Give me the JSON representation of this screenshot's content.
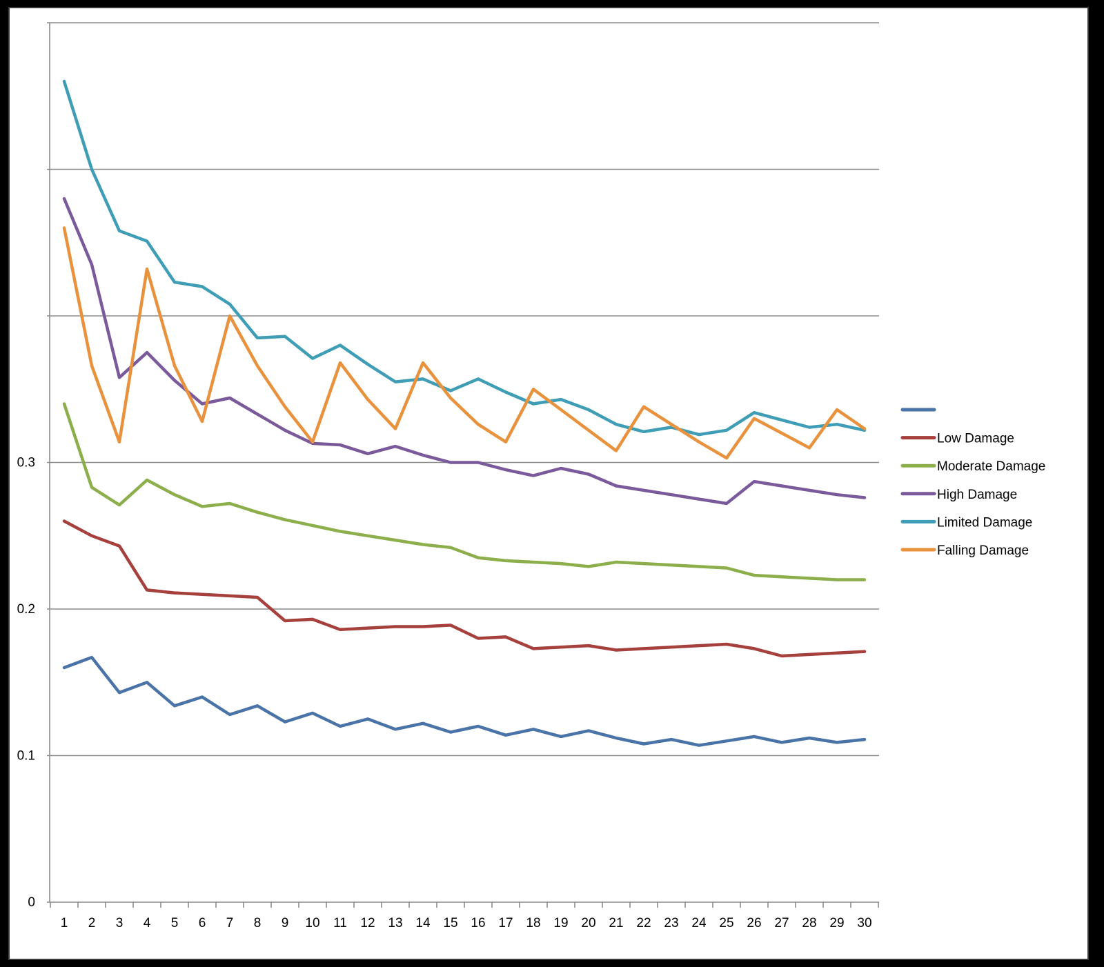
{
  "chart_data": {
    "type": "line",
    "title": "",
    "xlabel": "",
    "ylabel": "",
    "x": [
      1,
      2,
      3,
      4,
      5,
      6,
      7,
      8,
      9,
      10,
      11,
      12,
      13,
      14,
      15,
      16,
      17,
      18,
      19,
      20,
      21,
      22,
      23,
      24,
      25,
      26,
      27,
      28,
      29,
      30
    ],
    "x_tick_labels": [
      "1",
      "2",
      "3",
      "4",
      "5",
      "6",
      "7",
      "8",
      "9",
      "10",
      "11",
      "12",
      "13",
      "14",
      "15",
      "16",
      "17",
      "18",
      "19",
      "20",
      "21",
      "22",
      "23",
      "24",
      "25",
      "26",
      "27",
      "28",
      "29",
      "30"
    ],
    "ylim": [
      0,
      0.6
    ],
    "grid_values": [
      0.1,
      0.2,
      0.3,
      0.4,
      0.5,
      0.6
    ],
    "y_tick_values": [
      0,
      0.1,
      0.2,
      0.3
    ],
    "y_tick_labels": [
      "0",
      "0.1",
      "0.2",
      "0.3"
    ],
    "grid": true,
    "legend_position": "right",
    "series": [
      {
        "name": "",
        "color": "#4a73a8",
        "values": [
          0.16,
          0.167,
          0.143,
          0.15,
          0.134,
          0.14,
          0.128,
          0.134,
          0.123,
          0.129,
          0.12,
          0.125,
          0.118,
          0.122,
          0.116,
          0.12,
          0.114,
          0.118,
          0.113,
          0.117,
          0.112,
          0.108,
          0.111,
          0.107,
          0.11,
          0.113,
          0.109,
          0.112,
          0.109,
          0.111
        ]
      },
      {
        "name": "Low Damage",
        "color": "#a6403c",
        "values": [
          0.26,
          0.25,
          0.243,
          0.213,
          0.211,
          0.21,
          0.209,
          0.208,
          0.192,
          0.193,
          0.186,
          0.187,
          0.188,
          0.188,
          0.189,
          0.18,
          0.181,
          0.173,
          0.174,
          0.175,
          0.172,
          0.173,
          0.174,
          0.175,
          0.176,
          0.173,
          0.168,
          0.169,
          0.17,
          0.171
        ]
      },
      {
        "name": "Moderate Damage",
        "color": "#8cae4b",
        "values": [
          0.34,
          0.283,
          0.271,
          0.288,
          0.278,
          0.27,
          0.272,
          0.266,
          0.261,
          0.257,
          0.253,
          0.25,
          0.247,
          0.244,
          0.242,
          0.235,
          0.233,
          0.232,
          0.231,
          0.229,
          0.232,
          0.231,
          0.23,
          0.229,
          0.228,
          0.223,
          0.222,
          0.221,
          0.22,
          0.22
        ]
      },
      {
        "name": "High Damage",
        "color": "#7a5a9a",
        "values": [
          0.48,
          0.435,
          0.358,
          0.375,
          0.356,
          0.34,
          0.344,
          0.333,
          0.322,
          0.313,
          0.312,
          0.306,
          0.311,
          0.305,
          0.3,
          0.3,
          0.295,
          0.291,
          0.296,
          0.292,
          0.284,
          0.281,
          0.278,
          0.275,
          0.272,
          0.287,
          0.284,
          0.281,
          0.278,
          0.276
        ]
      },
      {
        "name": "Limited Damage",
        "color": "#3f9db5",
        "values": [
          0.56,
          0.5,
          0.458,
          0.451,
          0.423,
          0.42,
          0.408,
          0.385,
          0.386,
          0.371,
          0.38,
          0.367,
          0.355,
          0.357,
          0.349,
          0.357,
          0.348,
          0.34,
          0.343,
          0.336,
          0.326,
          0.321,
          0.324,
          0.319,
          0.322,
          0.334,
          0.329,
          0.324,
          0.326,
          0.322
        ]
      },
      {
        "name": "Falling Damage",
        "color": "#e8923e",
        "values": [
          0.46,
          0.366,
          0.314,
          0.432,
          0.366,
          0.328,
          0.4,
          0.366,
          0.338,
          0.314,
          0.368,
          0.343,
          0.323,
          0.368,
          0.344,
          0.326,
          0.314,
          0.35,
          0.336,
          0.322,
          0.308,
          0.338,
          0.326,
          0.314,
          0.303,
          0.33,
          0.32,
          0.31,
          0.336,
          0.323
        ]
      }
    ]
  }
}
